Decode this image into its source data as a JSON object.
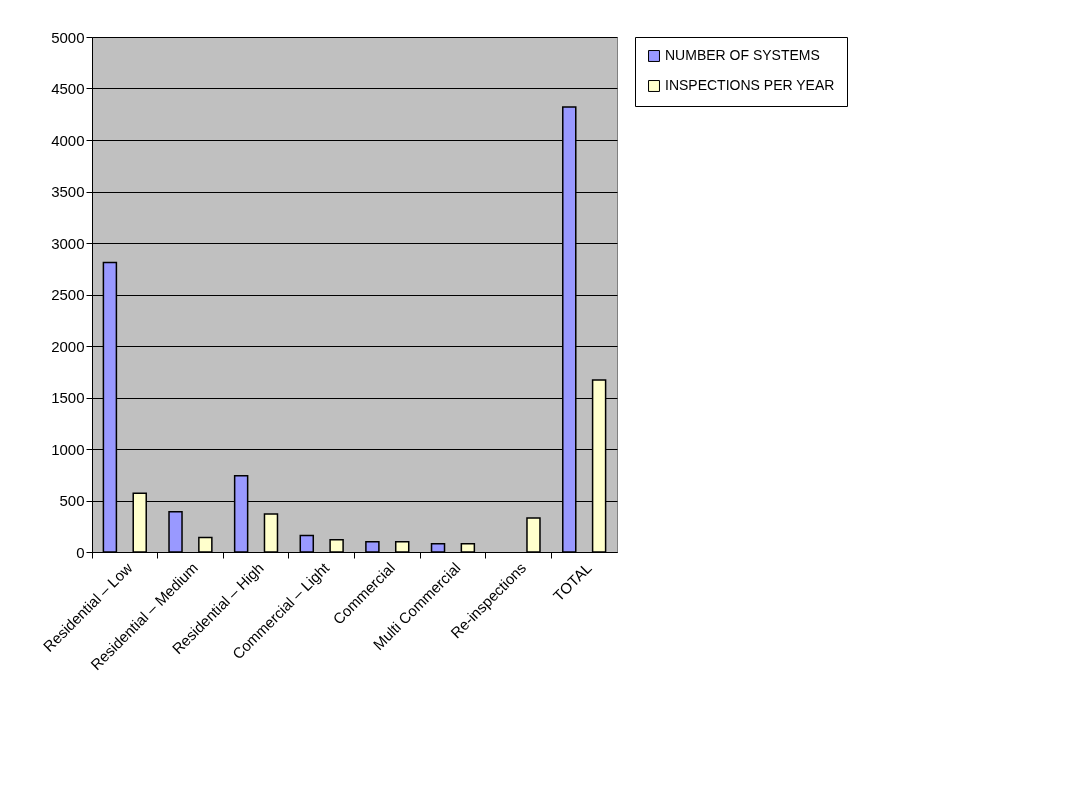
{
  "chart_data": {
    "type": "bar",
    "categories": [
      "Residential – Low",
      "Residential – Medium",
      "Residential – High",
      "Commercial – Light",
      "Commercial",
      "Multi Commercial",
      "Re-inspections",
      "TOTAL"
    ],
    "series": [
      {
        "name": "NUMBER OF SYSTEMS",
        "color": "#9999ff",
        "values": [
          2810,
          390,
          740,
          160,
          100,
          80,
          null,
          4320
        ]
      },
      {
        "name": "INSPECTIONS PER YEAR",
        "color": "#ffffcc",
        "values": [
          570,
          140,
          370,
          120,
          100,
          80,
          330,
          1670
        ]
      }
    ],
    "ylim": [
      0,
      5000
    ],
    "yticks": [
      0,
      500,
      1000,
      1500,
      2000,
      2500,
      3000,
      3500,
      4000,
      4500,
      5000
    ],
    "grid": "y",
    "legend": "right"
  }
}
